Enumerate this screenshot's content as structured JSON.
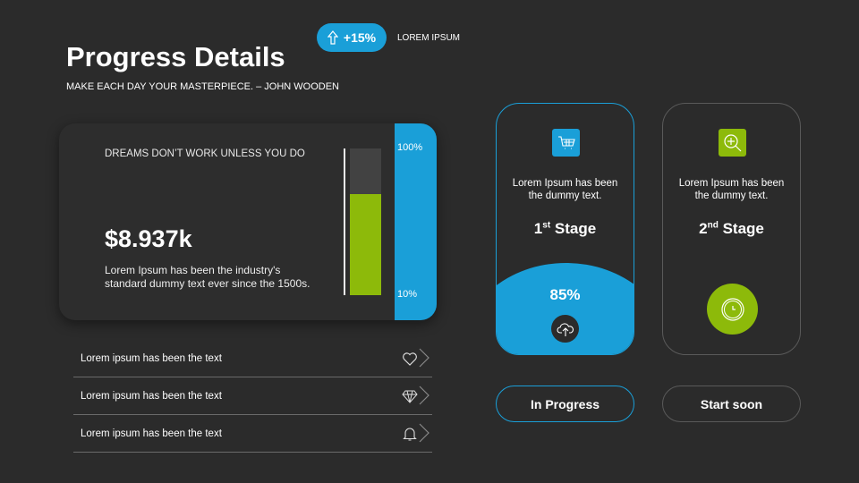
{
  "header": {
    "title": "Progress Details",
    "subtitle": "MAKE EACH DAY YOUR MASTERPIECE. – JOHN WOODEN",
    "badge_value": "+15%",
    "badge_label": "LOREM IPSUM"
  },
  "card": {
    "quote": "DREAMS DON’T WORK UNLESS YOU DO",
    "amount": "$8.937k",
    "description": "Lorem Ipsum has been the industry's standard dummy text ever since the 1500s.",
    "scale_top": "100%",
    "scale_bottom": "10%",
    "bar_fill_percent": 69
  },
  "list": [
    {
      "label": "Lorem ipsum has been the text",
      "icon": "heart-icon"
    },
    {
      "label": "Lorem ipsum has been the text",
      "icon": "diamond-icon"
    },
    {
      "label": "Lorem ipsum has been the text",
      "icon": "bell-icon"
    }
  ],
  "stages": [
    {
      "number": "1",
      "suffix": "st",
      "word": "Stage",
      "description": "Lorem Ipsum has been the dummy text.",
      "percent": "85%",
      "icon": "cart-icon",
      "button": "In Progress"
    },
    {
      "number": "2",
      "suffix": "nd",
      "word": "Stage",
      "description": "Lorem Ipsum has been the dummy text.",
      "icon": "zoom-in-icon",
      "button": "Start soon"
    }
  ],
  "colors": {
    "blue": "#1a9fd8",
    "green": "#8dba0a",
    "background": "#2b2b2b"
  }
}
